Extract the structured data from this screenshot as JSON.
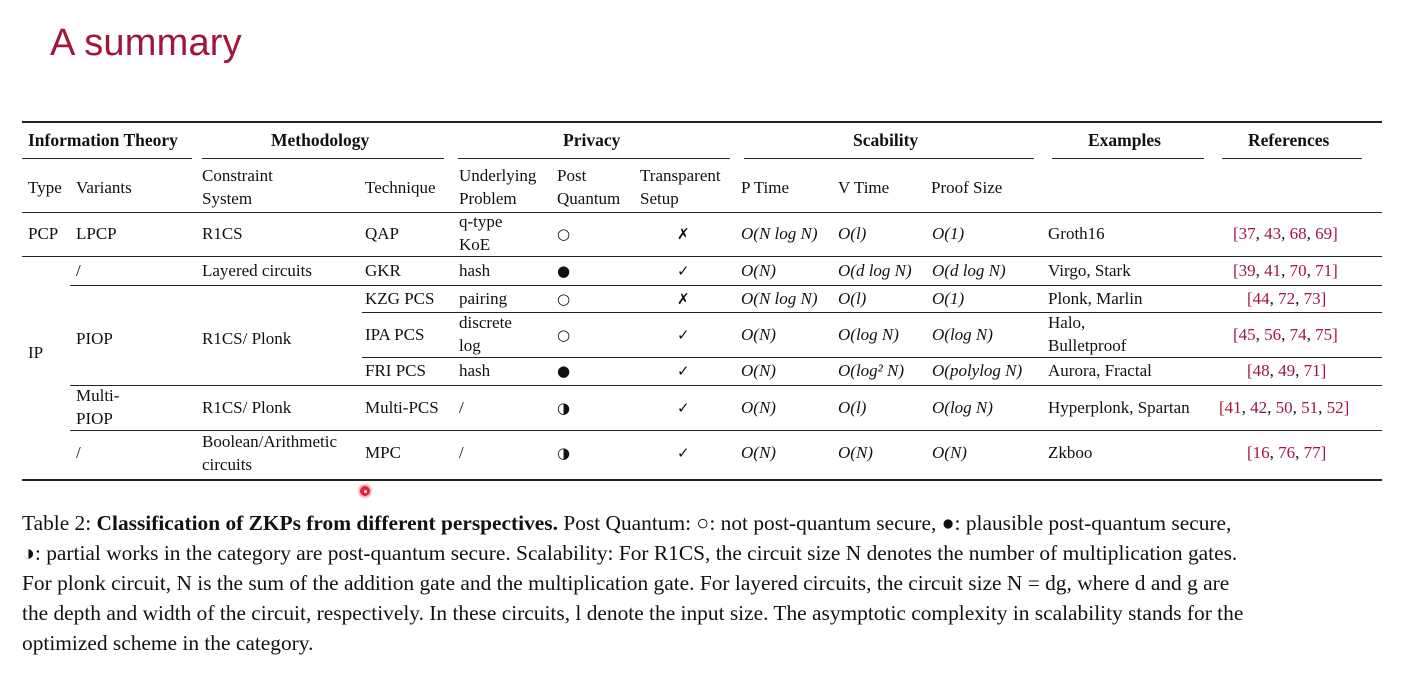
{
  "slide": {
    "title": "A summary"
  },
  "table": {
    "group_headers": {
      "info_theory": "Information Theory",
      "methodology": "Methodology",
      "privacy": "Privacy",
      "scalability": "Scability",
      "examples": "Examples",
      "references": "References"
    },
    "sub_headers": {
      "type": "Type",
      "variants": "Variants",
      "constraint_1": "Constraint",
      "constraint_2": "System",
      "technique": "Technique",
      "underlying_1": "Underlying",
      "underlying_2": "Problem",
      "post_1": "Post",
      "post_2": "Quantum",
      "transparent_1": "Transparent",
      "transparent_2": "Setup",
      "p_time": "P Time",
      "v_time": "V Time",
      "proof_size": "Proof Size"
    },
    "types": {
      "pcp": "PCP",
      "ip": "IP"
    },
    "variants": {
      "lpcp": "LPCP",
      "slash1": "/",
      "piop": "PIOP",
      "multi_1": "Multi-",
      "multi_2": "PIOP",
      "slash2": "/"
    },
    "constraint_systems": {
      "r1cs": "R1CS",
      "layered": "Layered circuits",
      "r1cs_plonk": "R1CS/ Plonk",
      "r1cs_plonk_2": "R1CS/ Plonk",
      "bool_1": "Boolean/Arithmetic",
      "bool_2": "circuits"
    },
    "rows": {
      "qap": {
        "technique": "QAP",
        "problem_1": "q-type",
        "problem_2": "KoE",
        "post_quantum": "○",
        "transparent": "✗",
        "p_time": "O(N log N)",
        "v_time": "O(l)",
        "proof_size": "O(1)",
        "examples": "Groth16",
        "refs": [
          "37",
          "43",
          "68",
          "69"
        ]
      },
      "gkr": {
        "technique": "GKR",
        "problem": "hash",
        "post_quantum": "●",
        "transparent": "✓",
        "p_time": "O(N)",
        "v_time": "O(d log N)",
        "proof_size": "O(d log N)",
        "examples": "Virgo, Stark",
        "refs": [
          "39",
          "41",
          "70",
          "71"
        ]
      },
      "kzg": {
        "technique": "KZG PCS",
        "problem": "pairing",
        "post_quantum": "○",
        "transparent": "✗",
        "p_time": "O(N log N)",
        "v_time": "O(l)",
        "proof_size": "O(1)",
        "examples": "Plonk, Marlin",
        "refs": [
          "44",
          "72",
          "73"
        ]
      },
      "ipa": {
        "technique": "IPA PCS",
        "problem_1": "discrete",
        "problem_2": "log",
        "post_quantum": "○",
        "transparent": "✓",
        "p_time": "O(N)",
        "v_time": "O(log N)",
        "proof_size": "O(log N)",
        "examples_1": "Halo,",
        "examples_2": "Bulletproof",
        "refs": [
          "45",
          "56",
          "74",
          "75"
        ]
      },
      "fri": {
        "technique": "FRI PCS",
        "problem": "hash",
        "post_quantum": "●",
        "transparent": "✓",
        "p_time": "O(N)",
        "v_time": "O(log² N)",
        "proof_size": "O(polylog N)",
        "examples": "Aurora, Fractal",
        "refs": [
          "48",
          "49",
          "71"
        ]
      },
      "mpcs": {
        "technique": "Multi-PCS",
        "problem": "/",
        "post_quantum": "◑",
        "transparent": "✓",
        "p_time": "O(N)",
        "v_time": "O(l)",
        "proof_size": "O(log N)",
        "examples": "Hyperplonk, Spartan",
        "refs": [
          "41",
          "42",
          "50",
          "51",
          "52"
        ]
      },
      "mpc": {
        "technique": "MPC",
        "problem": "/",
        "post_quantum": "◑",
        "transparent": "✓",
        "p_time": "O(N)",
        "v_time": "O(N)",
        "proof_size": "O(N)",
        "examples": "Zkboo",
        "refs": [
          "16",
          "76",
          "77"
        ]
      }
    }
  },
  "caption": {
    "label": "Table 2:",
    "bold": "Classification of ZKPs from different perspectives.",
    "line1_rest": "Post Quantum: ○: not post-quantum secure, ●: plausible post-quantum secure,",
    "line2": "◑: partial works in the category are post-quantum secure. Scalability: For R1CS, the circuit size N denotes the number of multiplication gates.",
    "line3": "For plonk circuit, N is the sum of the addition gate and the multiplication gate. For layered circuits, the circuit size N = dg, where d and g are",
    "line4": "the depth and width of the circuit, respectively. In these circuits, l denote the input size. The asymptotic complexity in scalability stands for the",
    "line5": "optimized scheme in the category."
  },
  "colors": {
    "title": "#a1173a",
    "refs": "#a1173a",
    "cursor": "#e8203a"
  }
}
